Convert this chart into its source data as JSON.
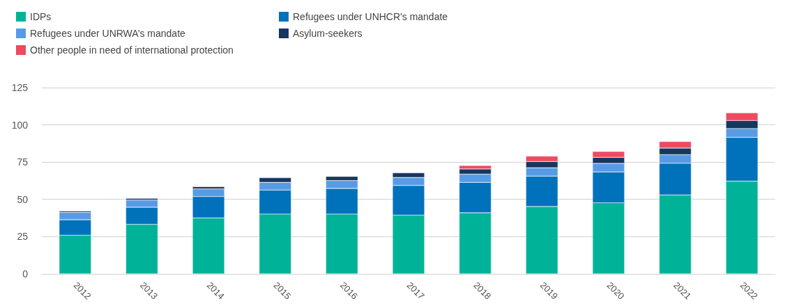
{
  "chart_data": {
    "type": "bar",
    "stacked": true,
    "categories": [
      "2012",
      "2013",
      "2014",
      "2015",
      "2016",
      "2017",
      "2018",
      "2019",
      "2020",
      "2021",
      "2022"
    ],
    "series": [
      {
        "name": "IDPs",
        "color": "#00b398",
        "values": [
          25.9,
          33.2,
          37.5,
          40.1,
          40.1,
          39.4,
          41.0,
          45.2,
          47.7,
          52.9,
          62.2
        ]
      },
      {
        "name": "Refugees under UNHCR's mandate",
        "color": "#0072bc",
        "values": [
          10.4,
          11.5,
          14.4,
          16.1,
          17.2,
          19.9,
          20.4,
          20.4,
          20.7,
          21.3,
          29.4
        ]
      },
      {
        "name": "Refugees under UNRWA’s mandate",
        "color": "#589be5",
        "values": [
          4.9,
          4.8,
          5.1,
          5.2,
          5.3,
          5.4,
          5.5,
          5.6,
          5.7,
          5.8,
          5.9
        ]
      },
      {
        "name": "Asylum-seekers",
        "color": "#18375f",
        "values": [
          0.9,
          1.2,
          1.5,
          3.1,
          2.8,
          3.1,
          3.5,
          4.2,
          4.1,
          4.4,
          5.4
        ]
      },
      {
        "name": "Other people in need of international protection",
        "color": "#ef4a60",
        "values": [
          null,
          null,
          null,
          null,
          null,
          null,
          2.3,
          3.6,
          3.9,
          4.4,
          5.2
        ]
      }
    ],
    "ylim": [
      0,
      125
    ],
    "yticks": [
      0,
      25,
      50,
      75,
      100,
      125
    ],
    "grid": "y",
    "legend": "top left"
  }
}
